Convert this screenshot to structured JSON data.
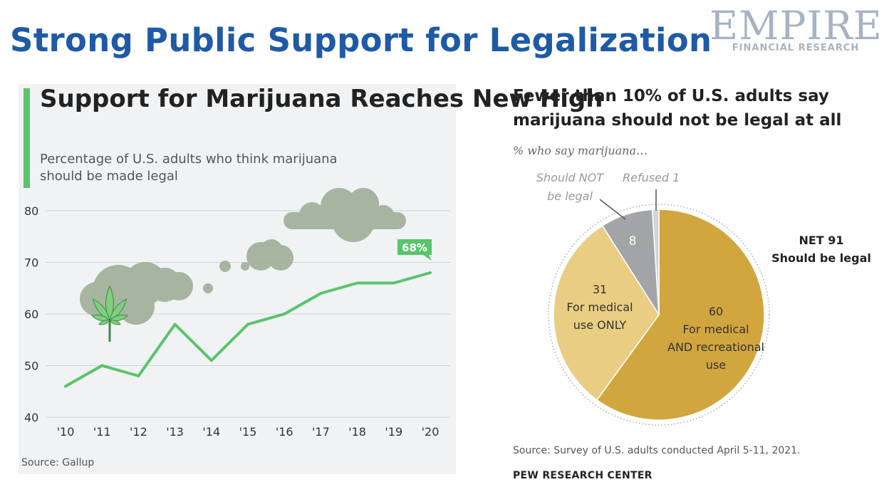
{
  "slide_title": "Strong Public Support for Legalization",
  "logo": {
    "main": "EMPIRE",
    "sub": "FINANCIAL RESEARCH"
  },
  "chart_data": [
    {
      "type": "line",
      "title": "Support for Marijuana Reaches New High",
      "subtitle": "Percentage of U.S. adults who think marijuana should be made legal",
      "x": [
        "'10",
        "'11",
        "'12",
        "'13",
        "'14",
        "'15",
        "'16",
        "'17",
        "'18",
        "'19",
        "'20"
      ],
      "series": [
        {
          "values": [
            46,
            50,
            48,
            58,
            51,
            58,
            60,
            64,
            66,
            66,
            68
          ]
        }
      ],
      "ylim": [
        40,
        80
      ],
      "yticks": [
        40,
        50,
        60,
        70,
        80
      ],
      "grid": true,
      "annotation": "68%",
      "source": "Source: Gallup",
      "colors": {
        "line": "#59c46c",
        "grid": "#cfd3d8",
        "cloud": "#9bab92",
        "leaf": "#7fcf7f"
      }
    },
    {
      "type": "pie",
      "title_line1": "Fewer than 10% of U.S. adults say",
      "title_line2": "marijuana should not be legal at all",
      "subtitle": "% who say marijuana…",
      "slices": [
        {
          "label": "For medical AND recreational use",
          "value": 60,
          "color": "#d1a63f"
        },
        {
          "label": "For medical use ONLY",
          "value": 31,
          "color": "#e8cd82"
        },
        {
          "label": "Should NOT be legal",
          "value": 8,
          "color": "#a2a4a8"
        },
        {
          "label": "Refused",
          "value": 1,
          "color": "#d3d4d6"
        }
      ],
      "callouts": {
        "should_not_line1": "Should NOT",
        "should_not_line2": "be legal",
        "refused": "Refused 1",
        "net_line1": "NET 91",
        "net_line2": "Should be legal"
      },
      "slice_text": {
        "s60": [
          "60",
          "For medical",
          "AND recreational",
          "use"
        ],
        "s31": [
          "31",
          "For medical",
          "use ONLY"
        ],
        "s8": [
          "8"
        ]
      },
      "source": "Source: Survey of U.S. adults conducted April 5-11, 2021.",
      "org": "PEW RESEARCH CENTER"
    }
  ]
}
